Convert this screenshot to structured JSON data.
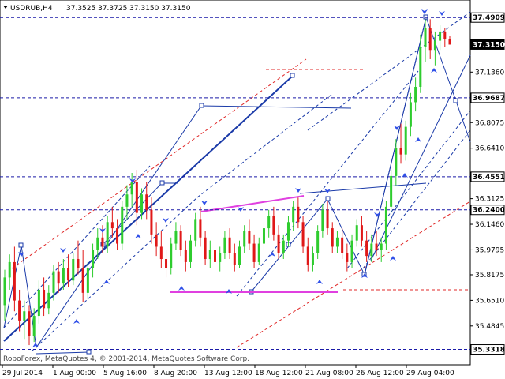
{
  "header": {
    "symbol_tf": "USDRUB,H4",
    "ohlc": "37.3525 37.3725 37.3150 37.3150"
  },
  "copyright": "RoboForex, MetaQuotes 4, © 2001-2014, MetaQuotes Software Corp.",
  "colors": {
    "candle_up": "#2ecc2e",
    "candle_down": "#e01818",
    "level_line": "#1a1aa8",
    "trend_blue": "#1a3aa8",
    "channel_red": "#e02828",
    "magenta": "#e040e0",
    "arrow": "#3050e8"
  },
  "chart_data": {
    "type": "candlestick",
    "symbol": "USDRUB",
    "timeframe": "H4",
    "ylim": [
      35.2318,
      37.605
    ],
    "price_axis_ticks": [
      "37.4909",
      "37.3150",
      "37.1360",
      "36.9687",
      "36.8075",
      "36.6410",
      "36.4551",
      "36.3125",
      "36.2400",
      "36.1460",
      "35.9795",
      "35.8175",
      "35.6510",
      "35.4845",
      "35.3318"
    ],
    "time_axis_ticks": [
      "29 Jul 2014",
      "1 Aug 00:00",
      "5 Aug 16:00",
      "8 Aug 20:00",
      "13 Aug 12:00",
      "18 Aug 12:00",
      "21 Aug 08:00",
      "26 Aug 12:00",
      "29 Aug 04:00"
    ],
    "marked_levels": [
      {
        "label": "37.4909",
        "price": 37.4909,
        "tag_style": "outline"
      },
      {
        "label": "37.3150",
        "price": 37.315,
        "tag_style": "current"
      },
      {
        "label": "36.9687",
        "price": 36.9687,
        "tag_style": "outline"
      },
      {
        "label": "36.4551",
        "price": 36.4551,
        "tag_style": "outline"
      },
      {
        "label": "36.2400",
        "price": 36.24,
        "tag_style": "outline"
      },
      {
        "label": "35.3318",
        "price": 35.3318,
        "tag_style": "outline"
      }
    ],
    "candles": [
      [
        35.62,
        35.85,
        35.52,
        35.8
      ],
      [
        35.8,
        35.95,
        35.72,
        35.9
      ],
      [
        35.9,
        36.0,
        35.58,
        35.65
      ],
      [
        35.65,
        35.72,
        35.45,
        35.52
      ],
      [
        35.52,
        35.65,
        35.4,
        35.58
      ],
      [
        35.58,
        35.62,
        35.36,
        35.42
      ],
      [
        35.42,
        35.6,
        35.38,
        35.55
      ],
      [
        35.55,
        35.78,
        35.5,
        35.72
      ],
      [
        35.72,
        35.8,
        35.55,
        35.6
      ],
      [
        35.6,
        35.75,
        35.56,
        35.7
      ],
      [
        35.7,
        35.88,
        35.65,
        35.84
      ],
      [
        35.84,
        35.9,
        35.7,
        35.76
      ],
      [
        35.76,
        35.92,
        35.72,
        35.86
      ],
      [
        35.86,
        35.95,
        35.74,
        35.78
      ],
      [
        35.78,
        35.96,
        35.75,
        35.92
      ],
      [
        35.92,
        36.04,
        35.82,
        35.86
      ],
      [
        35.86,
        35.98,
        35.64,
        35.7
      ],
      [
        35.7,
        35.9,
        35.66,
        35.86
      ],
      [
        35.86,
        36.02,
        35.8,
        35.98
      ],
      [
        35.98,
        36.12,
        35.92,
        36.06
      ],
      [
        36.06,
        36.14,
        35.96,
        36.0
      ],
      [
        36.0,
        36.2,
        35.96,
        36.16
      ],
      [
        36.16,
        36.26,
        36.06,
        36.12
      ],
      [
        36.12,
        36.18,
        35.98,
        36.02
      ],
      [
        36.02,
        36.3,
        35.98,
        36.26
      ],
      [
        36.26,
        36.4,
        36.18,
        36.34
      ],
      [
        36.34,
        36.48,
        36.26,
        36.42
      ],
      [
        36.42,
        36.5,
        36.14,
        36.22
      ],
      [
        36.22,
        36.38,
        36.18,
        36.34
      ],
      [
        36.34,
        36.42,
        36.18,
        36.24
      ],
      [
        36.24,
        36.32,
        36.02,
        36.08
      ],
      [
        36.08,
        36.16,
        35.94,
        36.0
      ],
      [
        36.0,
        36.1,
        35.86,
        35.92
      ],
      [
        35.92,
        35.98,
        35.8,
        35.86
      ],
      [
        35.86,
        36.06,
        35.82,
        36.02
      ],
      [
        36.02,
        36.16,
        35.98,
        36.1
      ],
      [
        36.1,
        36.14,
        35.94,
        35.98
      ],
      [
        35.98,
        36.04,
        35.84,
        35.9
      ],
      [
        35.9,
        36.08,
        35.86,
        36.04
      ],
      [
        36.04,
        36.22,
        36.0,
        36.18
      ],
      [
        36.18,
        36.26,
        36.0,
        36.06
      ],
      [
        36.06,
        36.1,
        35.88,
        35.92
      ],
      [
        35.92,
        36.04,
        35.86,
        35.98
      ],
      [
        35.98,
        36.06,
        35.86,
        35.9
      ],
      [
        35.9,
        36.0,
        35.84,
        35.96
      ],
      [
        35.96,
        36.1,
        35.92,
        36.06
      ],
      [
        36.06,
        36.12,
        35.92,
        35.96
      ],
      [
        35.96,
        36.02,
        35.84,
        35.88
      ],
      [
        35.88,
        36.04,
        35.86,
        36.0
      ],
      [
        36.0,
        36.14,
        35.96,
        36.1
      ],
      [
        36.1,
        36.18,
        35.98,
        36.02
      ],
      [
        36.02,
        36.08,
        35.86,
        35.9
      ],
      [
        35.9,
        36.06,
        35.88,
        36.02
      ],
      [
        36.02,
        36.16,
        35.98,
        36.12
      ],
      [
        36.12,
        36.24,
        36.06,
        36.2
      ],
      [
        36.2,
        36.26,
        36.04,
        36.08
      ],
      [
        36.08,
        36.14,
        35.92,
        35.96
      ],
      [
        35.96,
        36.08,
        35.92,
        36.04
      ],
      [
        36.04,
        36.2,
        36.0,
        36.16
      ],
      [
        36.16,
        36.3,
        36.1,
        36.26
      ],
      [
        36.26,
        36.32,
        36.12,
        36.16
      ],
      [
        36.16,
        36.2,
        35.96,
        36.0
      ],
      [
        36.0,
        36.06,
        35.84,
        35.88
      ],
      [
        35.88,
        36.0,
        35.84,
        35.96
      ],
      [
        35.96,
        36.14,
        35.92,
        36.1
      ],
      [
        36.1,
        36.28,
        36.06,
        36.24
      ],
      [
        36.24,
        36.3,
        36.08,
        36.12
      ],
      [
        36.12,
        36.16,
        35.96,
        36.0
      ],
      [
        36.0,
        36.1,
        35.96,
        36.06
      ],
      [
        36.06,
        36.12,
        35.92,
        35.96
      ],
      [
        35.96,
        36.02,
        35.84,
        35.9
      ],
      [
        35.9,
        36.08,
        35.86,
        36.04
      ],
      [
        36.04,
        36.18,
        36.0,
        36.14
      ],
      [
        36.14,
        36.2,
        36.0,
        36.04
      ],
      [
        36.04,
        36.1,
        35.9,
        35.94
      ],
      [
        35.94,
        36.08,
        35.9,
        36.02
      ],
      [
        36.02,
        36.1,
        35.94,
        35.98
      ],
      [
        35.98,
        36.06,
        35.9,
        36.02
      ],
      [
        36.02,
        36.3,
        35.98,
        36.26
      ],
      [
        36.26,
        36.5,
        36.22,
        36.46
      ],
      [
        36.46,
        36.7,
        36.4,
        36.64
      ],
      [
        36.64,
        36.8,
        36.54,
        36.6
      ],
      [
        36.6,
        36.82,
        36.56,
        36.78
      ],
      [
        36.78,
        37.0,
        36.72,
        36.94
      ],
      [
        36.94,
        37.1,
        36.88,
        37.04
      ],
      [
        37.04,
        37.38,
        37.0,
        37.3
      ],
      [
        37.3,
        37.48,
        37.2,
        37.42
      ],
      [
        37.42,
        37.48,
        37.22,
        37.28
      ],
      [
        37.28,
        37.4,
        37.18,
        37.34
      ],
      [
        37.34,
        37.44,
        37.28,
        37.4
      ],
      [
        37.4,
        37.42,
        37.3,
        37.35
      ],
      [
        37.3525,
        37.3725,
        37.315,
        37.315
      ]
    ]
  }
}
